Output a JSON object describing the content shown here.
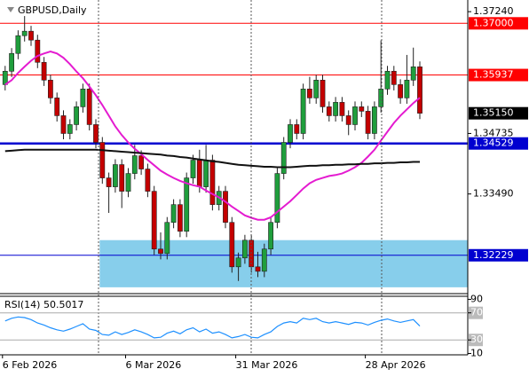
{
  "chart_data": [
    {
      "type": "candlestick",
      "title": "GBPUSD,Daily",
      "categories": [
        "6 Feb 2026",
        null,
        null,
        null,
        null,
        null,
        null,
        null,
        null,
        null,
        null,
        null,
        null,
        null,
        null,
        null,
        null,
        null,
        null,
        "6 Mar 2026",
        null,
        null,
        null,
        null,
        null,
        null,
        null,
        null,
        null,
        null,
        null,
        null,
        null,
        null,
        null,
        null,
        "31 Mar 2026",
        null,
        null,
        null,
        null,
        null,
        null,
        null,
        null,
        null,
        null,
        null,
        null,
        null,
        null,
        null,
        null,
        null,
        null,
        null,
        "28 Apr 2026",
        null,
        null,
        null,
        null,
        null,
        null,
        null,
        null
      ],
      "open": [
        1.3574,
        1.36015,
        1.36381,
        1.36746,
        1.36838,
        1.36655,
        1.36198,
        1.35832,
        1.35466,
        1.351,
        1.34734,
        1.34917,
        1.35283,
        1.35649,
        1.34917,
        1.34551,
        1.3382,
        1.33637,
        1.34094,
        1.33545,
        1.33911,
        1.34277,
        1.34003,
        1.33545,
        1.32357,
        1.32265,
        1.32905,
        1.33271,
        1.32722,
        1.3382,
        1.34186,
        1.33637,
        1.34186,
        1.33271,
        1.33545,
        1.32905,
        1.31991,
        1.32174,
        1.32539,
        1.31991,
        1.31899,
        1.32357,
        1.32905,
        1.33911,
        1.34551,
        1.34917,
        1.34734,
        1.35649,
        1.35466,
        1.35832,
        1.35283,
        1.351,
        1.35375,
        1.351,
        1.34917,
        1.35283,
        1.35192,
        1.34734,
        1.35283,
        1.35649,
        1.36015,
        1.3574,
        1.35466,
        1.35832,
        1.36106
      ],
      "high": [
        1.36125,
        1.36491,
        1.36856,
        1.3715,
        1.36948,
        1.36765,
        1.36308,
        1.35942,
        1.35576,
        1.3521,
        1.35027,
        1.35393,
        1.35759,
        1.35759,
        1.35027,
        1.34661,
        1.3393,
        1.34204,
        1.34204,
        1.34021,
        1.345,
        1.34387,
        1.34113,
        1.33655,
        1.327,
        1.33015,
        1.33381,
        1.33381,
        1.3393,
        1.34296,
        1.344,
        1.345,
        1.34296,
        1.33655,
        1.33655,
        1.33015,
        1.32284,
        1.32649,
        1.32649,
        1.323,
        1.32467,
        1.33015,
        1.34021,
        1.34661,
        1.35027,
        1.35027,
        1.35759,
        1.359,
        1.35942,
        1.35942,
        1.35393,
        1.35485,
        1.35485,
        1.3521,
        1.35393,
        1.35393,
        1.35302,
        1.35393,
        1.3665,
        1.36125,
        1.36125,
        1.3585,
        1.3635,
        1.365,
        1.36216
      ],
      "low": [
        1.3562,
        1.35895,
        1.36261,
        1.36626,
        1.36535,
        1.36078,
        1.35712,
        1.35346,
        1.3498,
        1.34614,
        1.34614,
        1.34797,
        1.35163,
        1.34797,
        1.34431,
        1.337,
        1.331,
        1.33517,
        1.332,
        1.33425,
        1.33791,
        1.33883,
        1.33425,
        1.32237,
        1.32145,
        1.32145,
        1.32785,
        1.32602,
        1.32602,
        1.337,
        1.33517,
        1.33517,
        1.33151,
        1.33151,
        1.32785,
        1.31871,
        1.317,
        1.32054,
        1.31871,
        1.31779,
        1.31779,
        1.32237,
        1.32785,
        1.33791,
        1.34431,
        1.34614,
        1.34614,
        1.35346,
        1.35346,
        1.35163,
        1.3498,
        1.3498,
        1.3498,
        1.347,
        1.34797,
        1.35072,
        1.34614,
        1.34614,
        1.35163,
        1.35529,
        1.3562,
        1.35346,
        1.35346,
        1.35712,
        1.3503
      ],
      "close": [
        1.36015,
        1.36381,
        1.36746,
        1.36838,
        1.36655,
        1.36198,
        1.35832,
        1.35466,
        1.351,
        1.34734,
        1.34917,
        1.35283,
        1.35649,
        1.34917,
        1.34551,
        1.3382,
        1.33637,
        1.34094,
        1.33545,
        1.33911,
        1.34277,
        1.34003,
        1.33545,
        1.32357,
        1.32265,
        1.32905,
        1.33271,
        1.32722,
        1.3382,
        1.34186,
        1.33637,
        1.34186,
        1.33271,
        1.33545,
        1.32905,
        1.31991,
        1.32174,
        1.32539,
        1.31991,
        1.31899,
        1.32357,
        1.32905,
        1.33911,
        1.34551,
        1.34917,
        1.34734,
        1.35649,
        1.35466,
        1.35832,
        1.35283,
        1.351,
        1.35375,
        1.351,
        1.34917,
        1.35283,
        1.35192,
        1.34734,
        1.35283,
        1.35649,
        1.36015,
        1.3574,
        1.35466,
        1.35832,
        1.36106,
        1.3515
      ],
      "last_price_label": "1.35150",
      "up_color": "#1f9e3c",
      "down_color": "#c40000",
      "overlays": [
        {
          "color": "#e41bd0",
          "values": [
            1.3574,
            1.3583,
            1.3598,
            1.3611,
            1.3623,
            1.3633,
            1.3638,
            1.3642,
            1.3638,
            1.3629,
            1.3616,
            1.3601,
            1.3587,
            1.357,
            1.3552,
            1.3532,
            1.351,
            1.3488,
            1.347,
            1.3455,
            1.3442,
            1.3431,
            1.3419,
            1.3408,
            1.3397,
            1.3389,
            1.3382,
            1.3376,
            1.3371,
            1.3367,
            1.3364,
            1.3356,
            1.3349,
            1.3342,
            1.3333,
            1.3323,
            1.3314,
            1.3305,
            1.33,
            1.3296,
            1.3296,
            1.3301,
            1.3312,
            1.3323,
            1.3334,
            1.3347,
            1.336,
            1.3371,
            1.3378,
            1.3382,
            1.3386,
            1.3388,
            1.3391,
            1.3397,
            1.3404,
            1.3413,
            1.3426,
            1.344,
            1.3459,
            1.3477,
            1.3495,
            1.351,
            1.3523,
            1.3536,
            1.3547
          ]
        },
        {
          "color": "#111111",
          "values": [
            1.3437,
            1.3438,
            1.3439,
            1.344,
            1.344,
            1.344,
            1.344,
            1.344,
            1.344,
            1.344,
            1.344,
            1.344,
            1.344,
            1.344,
            1.344,
            1.3439,
            1.3438,
            1.3437,
            1.3436,
            1.3435,
            1.3434,
            1.3433,
            1.3432,
            1.3431,
            1.343,
            1.3428,
            1.3427,
            1.3425,
            1.3424,
            1.3422,
            1.342,
            1.3418,
            1.3416,
            1.3415,
            1.3413,
            1.3411,
            1.3409,
            1.3408,
            1.3407,
            1.3406,
            1.3405,
            1.3405,
            1.3404,
            1.3404,
            1.3404,
            1.3405,
            1.3406,
            1.3407,
            1.3407,
            1.3408,
            1.3408,
            1.3409,
            1.3409,
            1.341,
            1.341,
            1.3411,
            1.3411,
            1.3412,
            1.3412,
            1.3413,
            1.3413,
            1.3414,
            1.3414,
            1.3415,
            1.3415
          ]
        }
      ],
      "levels": [
        {
          "value": 1.37,
          "label": "1.37000",
          "color": "#ff0000",
          "width": 1
        },
        {
          "value": 1.35937,
          "label": "1.35937",
          "color": "#ff0000",
          "width": 1
        },
        {
          "value": 1.34529,
          "label": "1.34529",
          "color": "#0000d0",
          "width": 2.5
        },
        {
          "value": 1.32229,
          "label": "1.32229",
          "color": "#0000d0",
          "width": 1
        }
      ],
      "zone": {
        "ylim": [
          1.3157,
          1.3254
        ],
        "start_index": 15,
        "color": "#87ceeb"
      },
      "ylim": [
        1.3144,
        1.3748
      ],
      "yticks": [
        {
          "value": 1.3724,
          "label": "1.37240"
        },
        {
          "value": 1.34735,
          "label": "1.34735"
        },
        {
          "value": 1.3349,
          "label": "1.33490"
        }
      ]
    },
    {
      "type": "line",
      "title": "RSI(14) 50.5017",
      "color": "#1e90ff",
      "values": [
        58,
        62,
        64,
        63,
        60,
        55,
        52,
        48,
        45,
        43,
        46,
        50,
        54,
        46,
        44,
        38,
        37,
        42,
        38,
        41,
        45,
        42,
        38,
        33,
        34,
        40,
        43,
        39,
        45,
        48,
        42,
        46,
        40,
        42,
        38,
        33,
        35,
        38,
        34,
        33,
        38,
        42,
        50,
        55,
        57,
        55,
        62,
        60,
        62,
        57,
        55,
        57,
        55,
        53,
        56,
        55,
        52,
        56,
        59,
        61,
        58,
        56,
        58,
        60,
        50.5017
      ],
      "levels": [
        70,
        30
      ],
      "ylim": [
        8,
        94.5
      ],
      "yticks": [
        90,
        70,
        30,
        10
      ]
    }
  ]
}
